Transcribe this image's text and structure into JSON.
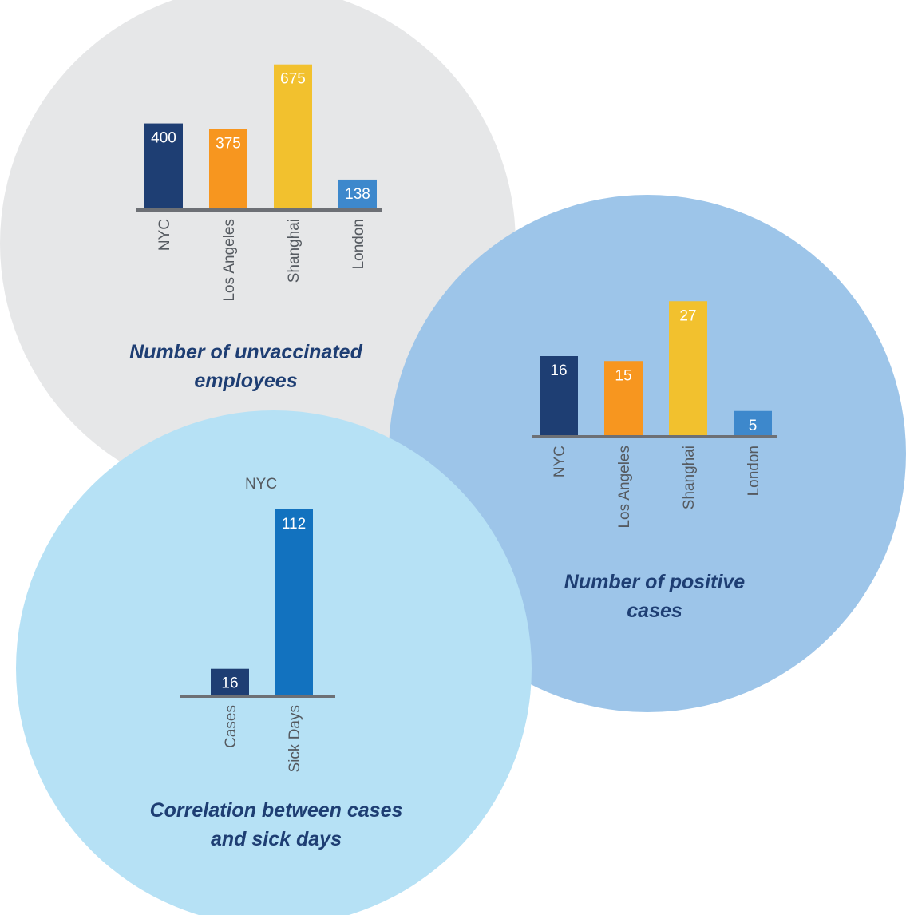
{
  "colors": {
    "nyc": "#1e3e73",
    "los_angeles": "#f7961f",
    "shanghai": "#f2c12e",
    "london": "#3d88cc",
    "sick_days": "#1272bf",
    "axis": "#6d7075",
    "circle_grey": "#e6e7e8",
    "circle_blue": "#9dc5e9",
    "circle_light": "#b6e1f5",
    "caption": "#1e3e73"
  },
  "chart_data": [
    {
      "type": "bar",
      "title": "Number of unvaccinated employees",
      "title_lines": [
        "Number of unvaccinated",
        "employees"
      ],
      "categories": [
        "NYC",
        "Los Angeles",
        "Shanghai",
        "London"
      ],
      "values": [
        400,
        375,
        675,
        138
      ],
      "ylim": [
        0,
        700
      ],
      "grid": false
    },
    {
      "type": "bar",
      "title": "Number of positive cases",
      "title_lines": [
        "Number of positive",
        "cases"
      ],
      "categories": [
        "NYC",
        "Los Angeles",
        "Shanghai",
        "London"
      ],
      "values": [
        16,
        15,
        27,
        5
      ],
      "ylim": [
        0,
        28
      ],
      "grid": false
    },
    {
      "type": "bar",
      "title": "Correlation between cases and sick days",
      "title_lines": [
        "Correlation between cases",
        "and sick days"
      ],
      "subtitle": "NYC",
      "categories": [
        "Cases",
        "Sick Days"
      ],
      "values": [
        16,
        112
      ],
      "ylim": [
        0,
        112
      ],
      "grid": false
    }
  ]
}
